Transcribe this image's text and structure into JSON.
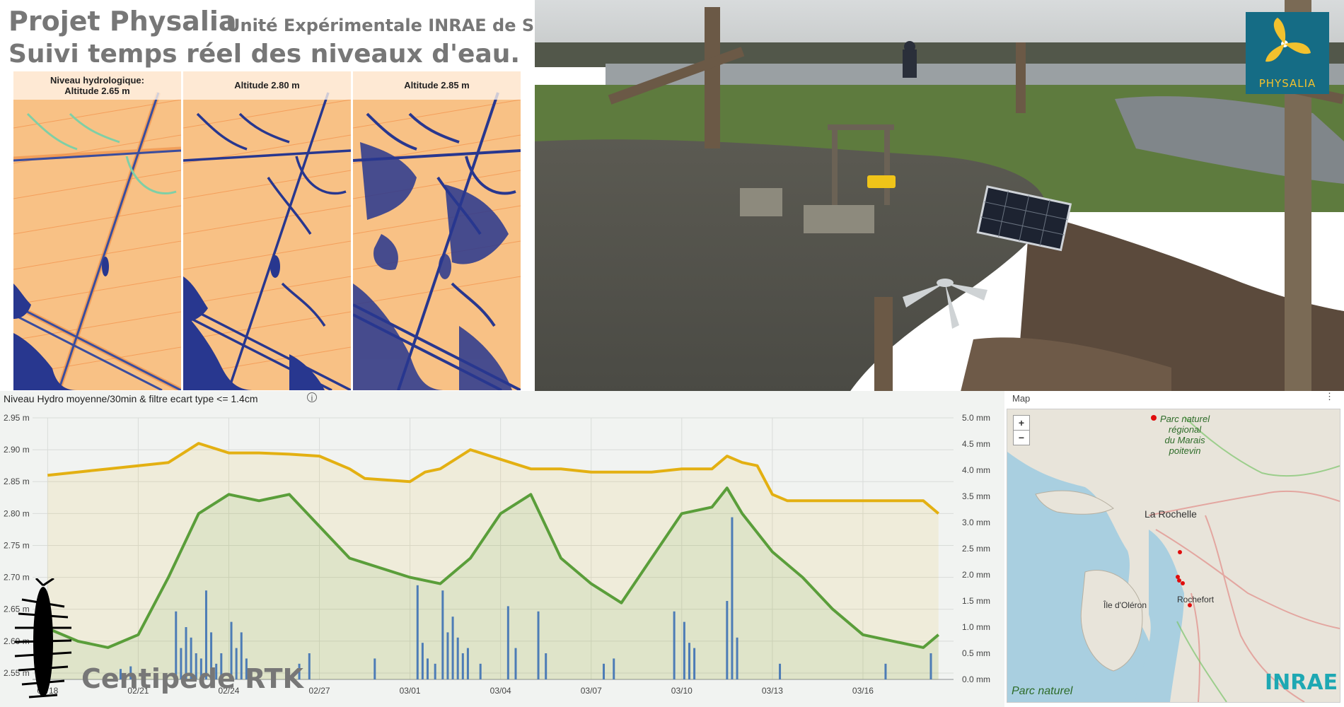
{
  "header": {
    "title": "Projet Physalia",
    "unit": "Unité Expérimentale INRAE de Saint-Laurent-de-la-Prée",
    "subtitle": "Suivi temps réel des niveaux d'eau."
  },
  "maps": [
    {
      "caption": "Niveau hydrologique:\nAltitude 2.65 m"
    },
    {
      "caption": "Altitude 2.80 m"
    },
    {
      "caption": "Altitude 2.85 m"
    }
  ],
  "colors": {
    "accent": "#156c85",
    "logo_text": "#f2c12e",
    "yellow_series": "#e3b012",
    "green_series": "#5a9e3a",
    "bar_series": "#3b73d8",
    "map_water": "#28378f",
    "map_land": "#f8c185"
  },
  "logo": {
    "text": "PHYSALIA",
    "icon": "propeller-icon"
  },
  "chart_panel": {
    "title": "Niveau Hydro moyenne/30min & filtre ecart type <= 1.4cm",
    "info_icon": "info-icon"
  },
  "chart_data": {
    "type": "line",
    "x_ticks": [
      "02/18",
      "02/21",
      "02/24",
      "02/27",
      "03/01",
      "03/04",
      "03/07",
      "03/10",
      "03/13",
      "03/16"
    ],
    "y_left_ticks": [
      "2.55 m",
      "2.60 m",
      "2.65 m",
      "2.70 m",
      "2.75 m",
      "2.80 m",
      "2.85 m",
      "2.90 m",
      "2.95 m"
    ],
    "y_right_ticks": [
      "0.0 mm",
      "0.5 mm",
      "1.0 mm",
      "1.5 mm",
      "2.0 mm",
      "2.5 mm",
      "3.0 mm",
      "3.5 mm",
      "4.0 mm",
      "4.5 mm",
      "5.0 mm"
    ],
    "ylim_left": [
      2.54,
      2.95
    ],
    "ylim_right": [
      0,
      5
    ],
    "x_range": [
      "02/18",
      "03/19"
    ],
    "grid": true,
    "series": [
      {
        "axis": "left",
        "color": "#e3b012",
        "points": [
          [
            "02/18",
            2.86
          ],
          [
            "02/19",
            2.865
          ],
          [
            "02/20",
            2.87
          ],
          [
            "02/21",
            2.875
          ],
          [
            "02/22",
            2.88
          ],
          [
            "02/23",
            2.91
          ],
          [
            "02/24",
            2.895
          ],
          [
            "02/25",
            2.895
          ],
          [
            "02/26",
            2.893
          ],
          [
            "02/27",
            2.89
          ],
          [
            "02/28",
            2.87
          ],
          [
            "02/28 12:00",
            2.855
          ],
          [
            "03/01",
            2.85
          ],
          [
            "03/01 12:00",
            2.865
          ],
          [
            "03/02",
            2.87
          ],
          [
            "03/02 12:00",
            2.885
          ],
          [
            "03/03",
            2.9
          ],
          [
            "03/04",
            2.885
          ],
          [
            "03/05",
            2.87
          ],
          [
            "03/06",
            2.87
          ],
          [
            "03/07",
            2.865
          ],
          [
            "03/08",
            2.865
          ],
          [
            "03/09",
            2.865
          ],
          [
            "03/10",
            2.87
          ],
          [
            "03/11",
            2.87
          ],
          [
            "03/11 12:00",
            2.89
          ],
          [
            "03/12",
            2.88
          ],
          [
            "03/12 12:00",
            2.875
          ],
          [
            "03/13",
            2.83
          ],
          [
            "03/13 12:00",
            2.82
          ],
          [
            "03/14",
            2.82
          ],
          [
            "03/15",
            2.82
          ],
          [
            "03/16",
            2.82
          ],
          [
            "03/17",
            2.82
          ],
          [
            "03/18",
            2.82
          ],
          [
            "03/18 12:00",
            2.8
          ]
        ]
      },
      {
        "axis": "left",
        "color": "#5a9e3a",
        "points": [
          [
            "02/18",
            2.62
          ],
          [
            "02/19",
            2.6
          ],
          [
            "02/20",
            2.59
          ],
          [
            "02/21",
            2.61
          ],
          [
            "02/22",
            2.7
          ],
          [
            "02/23",
            2.8
          ],
          [
            "02/24",
            2.83
          ],
          [
            "02/25",
            2.82
          ],
          [
            "02/26",
            2.83
          ],
          [
            "02/27",
            2.78
          ],
          [
            "02/28",
            2.73
          ],
          [
            "03/01",
            2.7
          ],
          [
            "03/02",
            2.69
          ],
          [
            "03/03",
            2.73
          ],
          [
            "03/04",
            2.8
          ],
          [
            "03/05",
            2.83
          ],
          [
            "03/06",
            2.73
          ],
          [
            "03/07",
            2.69
          ],
          [
            "03/08",
            2.66
          ],
          [
            "03/09",
            2.73
          ],
          [
            "03/10",
            2.8
          ],
          [
            "03/11",
            2.81
          ],
          [
            "03/11 12:00",
            2.84
          ],
          [
            "03/12",
            2.8
          ],
          [
            "03/13",
            2.74
          ],
          [
            "03/14",
            2.7
          ],
          [
            "03/15",
            2.65
          ],
          [
            "03/16",
            2.61
          ],
          [
            "03/17",
            2.6
          ],
          [
            "03/18",
            2.59
          ],
          [
            "03/18 12:00",
            2.61
          ]
        ]
      },
      {
        "axis": "right",
        "type": "bar",
        "color": "#3b73d8",
        "points": [
          [
            "02/20 10:00",
            0.2
          ],
          [
            "02/20 18:00",
            0.25
          ],
          [
            "02/22 06:00",
            1.3
          ],
          [
            "02/22 10:00",
            0.6
          ],
          [
            "02/22 14:00",
            1.0
          ],
          [
            "02/22 18:00",
            0.8
          ],
          [
            "02/22 22:00",
            0.5
          ],
          [
            "02/23 02:00",
            0.4
          ],
          [
            "02/23 06:00",
            1.7
          ],
          [
            "02/23 10:00",
            0.9
          ],
          [
            "02/23 14:00",
            0.3
          ],
          [
            "02/23 18:00",
            0.5
          ],
          [
            "02/24 02:00",
            1.1
          ],
          [
            "02/24 06:00",
            0.6
          ],
          [
            "02/24 10:00",
            0.9
          ],
          [
            "02/24 14:00",
            0.4
          ],
          [
            "02/26 08:00",
            0.3
          ],
          [
            "02/26 16:00",
            0.5
          ],
          [
            "02/28 20:00",
            0.4
          ],
          [
            "03/01 06:00",
            1.8
          ],
          [
            "03/01 10:00",
            0.7
          ],
          [
            "03/01 14:00",
            0.4
          ],
          [
            "03/01 20:00",
            0.3
          ],
          [
            "03/02 02:00",
            1.7
          ],
          [
            "03/02 06:00",
            0.9
          ],
          [
            "03/02 10:00",
            1.2
          ],
          [
            "03/02 14:00",
            0.8
          ],
          [
            "03/02 18:00",
            0.5
          ],
          [
            "03/02 22:00",
            0.6
          ],
          [
            "03/03 08:00",
            0.3
          ],
          [
            "03/04 06:00",
            1.4
          ],
          [
            "03/04 12:00",
            0.6
          ],
          [
            "03/05 06:00",
            1.3
          ],
          [
            "03/05 12:00",
            0.5
          ],
          [
            "03/07 10:00",
            0.3
          ],
          [
            "03/07 18:00",
            0.4
          ],
          [
            "03/09 18:00",
            1.3
          ],
          [
            "03/10 02:00",
            1.1
          ],
          [
            "03/10 06:00",
            0.7
          ],
          [
            "03/10 10:00",
            0.6
          ],
          [
            "03/11 12:00",
            1.5
          ],
          [
            "03/11 16:00",
            3.1
          ],
          [
            "03/11 20:00",
            0.8
          ],
          [
            "03/13 06:00",
            0.3
          ],
          [
            "03/16 18:00",
            0.3
          ],
          [
            "03/18 06:00",
            0.5
          ]
        ]
      }
    ]
  },
  "map": {
    "label": "Map",
    "menu_icon": "more-vert-icon",
    "zoom_in": "+",
    "zoom_out": "−",
    "places": {
      "park_top": "Parc naturel\nrégional\ndu Marais\npoitevin",
      "la_rochelle": "La Rochelle",
      "ile_oleron": "Île d'Oléron",
      "rochefort": "Rochefort",
      "park_bottom": "Parc naturel"
    }
  },
  "footer": {
    "centipede_text": "Centipede RTK",
    "inrae_logo": "INRAE"
  }
}
